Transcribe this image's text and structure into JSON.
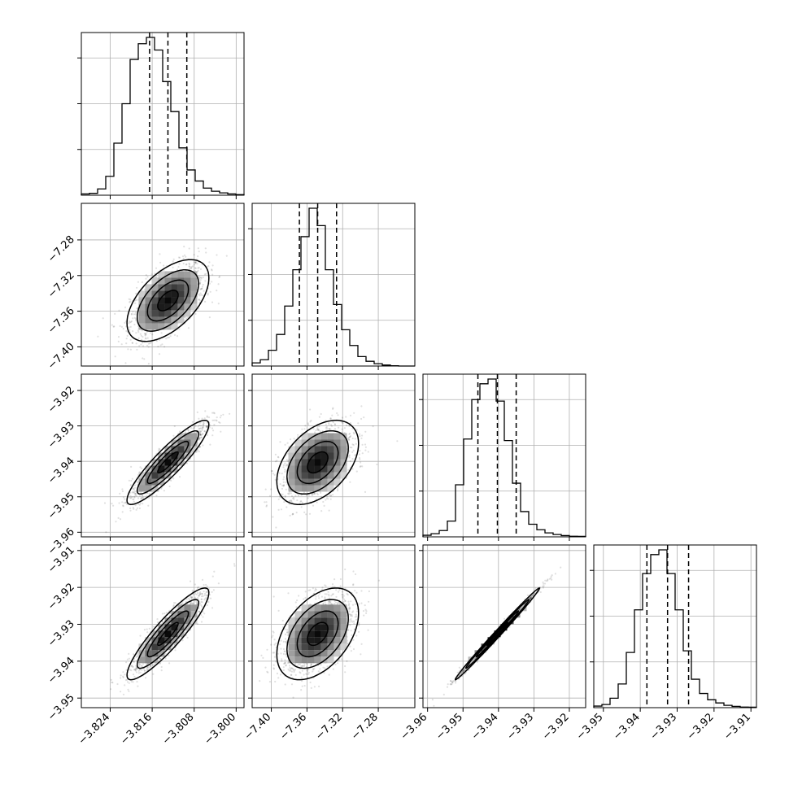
{
  "chart_data": {
    "type": "corner",
    "grid": true,
    "parameters": [
      {
        "ticks": [
          -3.824,
          -3.816,
          -3.808,
          -3.8
        ],
        "tick_labels": [
          "−3.824",
          "−3.816",
          "−3.808",
          "−3.800"
        ],
        "range": [
          -3.8295,
          -3.7985
        ],
        "quantiles": [
          -3.8165,
          -3.813,
          -3.8094
        ],
        "hist": [
          0.008,
          0.012,
          0.04,
          0.12,
          0.33,
          0.58,
          0.86,
          0.96,
          1.0,
          0.92,
          0.72,
          0.53,
          0.3,
          0.16,
          0.09,
          0.045,
          0.025,
          0.015,
          0.008,
          0.004
        ]
      },
      {
        "ticks": [
          -7.4,
          -7.36,
          -7.32,
          -7.28
        ],
        "tick_labels": [
          "−7.40",
          "−7.36",
          "−7.32",
          "−7.28"
        ],
        "range": [
          -7.4215,
          -7.239
        ],
        "quantiles": [
          -7.3685,
          -7.348,
          -7.3268
        ],
        "hist": [
          0.02,
          0.04,
          0.1,
          0.2,
          0.38,
          0.61,
          0.82,
          1.0,
          0.89,
          0.61,
          0.39,
          0.23,
          0.13,
          0.06,
          0.03,
          0.015,
          0.006,
          0.002,
          0.0,
          0.0
        ]
      },
      {
        "ticks": [
          -3.96,
          -3.95,
          -3.94,
          -3.93,
          -3.92
        ],
        "tick_labels": [
          "−3.96",
          "−3.95",
          "−3.94",
          "−3.93",
          "−3.92"
        ],
        "range": [
          -3.9613,
          -3.9154
        ],
        "quantiles": [
          -3.9458,
          -3.9403,
          -3.935
        ],
        "hist": [
          0.01,
          0.02,
          0.04,
          0.1,
          0.33,
          0.62,
          0.87,
          0.97,
          1.0,
          0.86,
          0.61,
          0.34,
          0.16,
          0.08,
          0.045,
          0.025,
          0.015,
          0.008,
          0.004,
          0.003
        ]
      },
      {
        "ticks": [
          -3.95,
          -3.94,
          -3.93,
          -3.92,
          -3.91
        ],
        "tick_labels": [
          "−3.95",
          "−3.94",
          "−3.93",
          "−3.92",
          "−3.91"
        ],
        "range": [
          -3.9526,
          -3.9085
        ],
        "quantiles": [
          -3.9382,
          -3.9326,
          -3.9269
        ],
        "hist": [
          0.01,
          0.02,
          0.06,
          0.15,
          0.35,
          0.62,
          0.85,
          0.97,
          1.0,
          0.85,
          0.62,
          0.36,
          0.18,
          0.09,
          0.05,
          0.03,
          0.015,
          0.008,
          0.004,
          0.003
        ]
      }
    ],
    "correlations": [
      [
        1.0,
        0.55,
        0.9,
        0.9
      ],
      [
        0.55,
        1.0,
        0.45,
        0.45
      ],
      [
        0.9,
        0.45,
        1.0,
        0.995
      ],
      [
        0.9,
        0.45,
        0.995,
        1.0
      ]
    ]
  }
}
